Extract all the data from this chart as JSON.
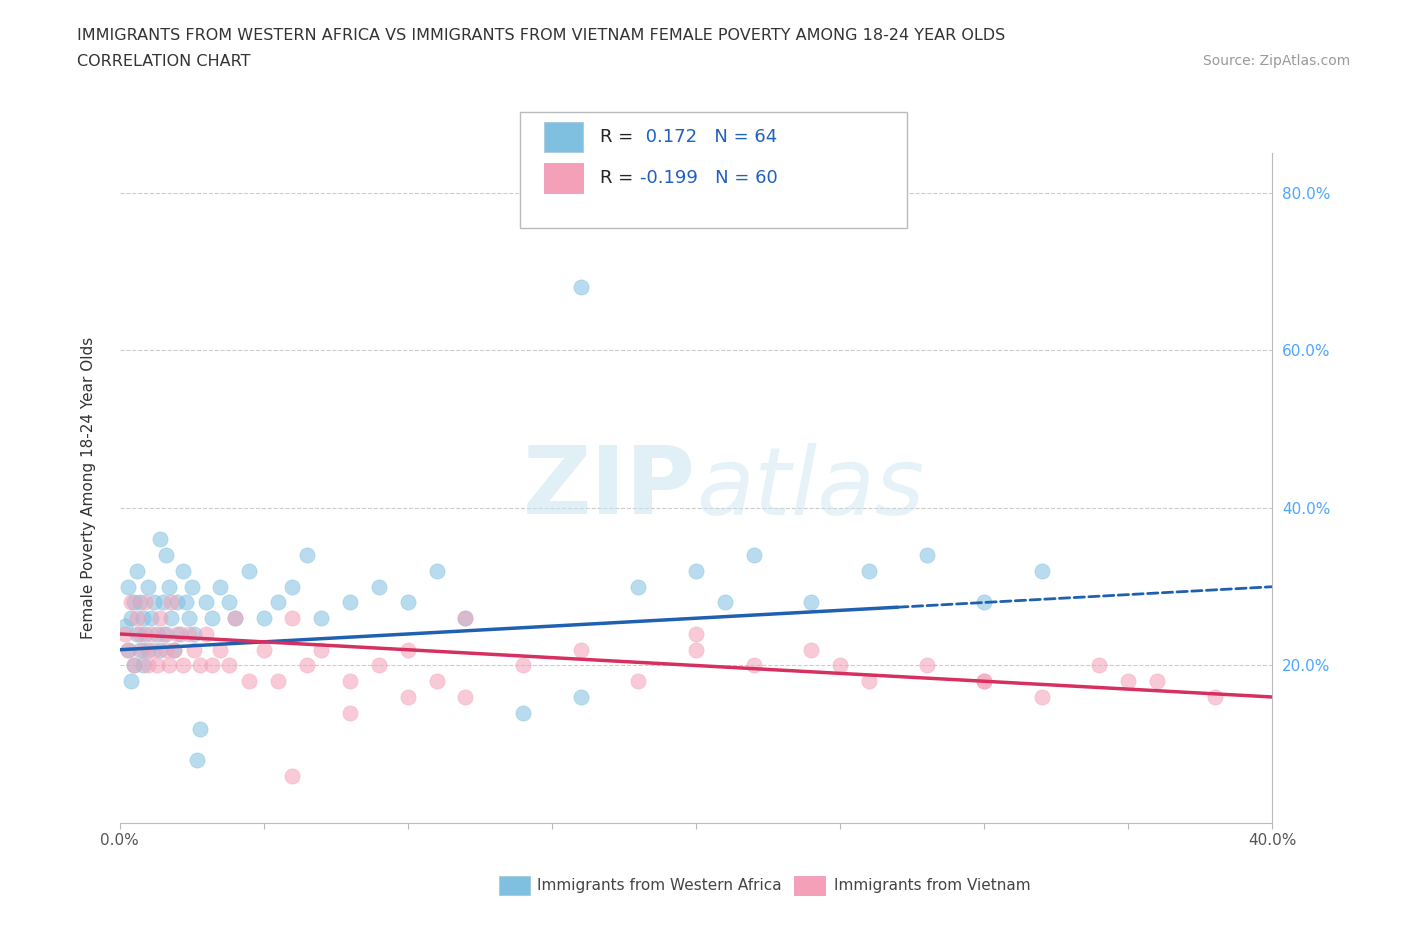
{
  "title_line1": "IMMIGRANTS FROM WESTERN AFRICA VS IMMIGRANTS FROM VIETNAM FEMALE POVERTY AMONG 18-24 YEAR OLDS",
  "title_line2": "CORRELATION CHART",
  "source_text": "Source: ZipAtlas.com",
  "ylabel": "Female Poverty Among 18-24 Year Olds",
  "x_min": 0.0,
  "x_max": 0.4,
  "y_min": 0.0,
  "y_max": 0.85,
  "x_ticks": [
    0.0,
    0.05,
    0.1,
    0.15,
    0.2,
    0.25,
    0.3,
    0.35,
    0.4
  ],
  "x_tick_labels": [
    "0.0%",
    "",
    "",
    "",
    "",
    "",
    "",
    "",
    "40.0%"
  ],
  "y_ticks": [
    0.0,
    0.2,
    0.4,
    0.6,
    0.8
  ],
  "y_tick_labels_right": [
    "",
    "20.0%",
    "40.0%",
    "60.0%",
    "80.0%"
  ],
  "blue_R": 0.172,
  "blue_N": 64,
  "pink_R": -0.199,
  "pink_N": 60,
  "blue_color": "#7fbfdf",
  "pink_color": "#f4a0b8",
  "blue_line_color": "#2060b0",
  "pink_line_color": "#d63060",
  "watermark_zip": "ZIP",
  "watermark_atlas": "atlas",
  "blue_scatter_x": [
    0.002,
    0.003,
    0.003,
    0.004,
    0.004,
    0.005,
    0.005,
    0.006,
    0.006,
    0.007,
    0.007,
    0.008,
    0.008,
    0.009,
    0.01,
    0.01,
    0.011,
    0.012,
    0.013,
    0.014,
    0.014,
    0.015,
    0.016,
    0.016,
    0.017,
    0.018,
    0.019,
    0.02,
    0.021,
    0.022,
    0.023,
    0.024,
    0.025,
    0.026,
    0.027,
    0.028,
    0.03,
    0.032,
    0.035,
    0.038,
    0.04,
    0.045,
    0.05,
    0.055,
    0.06,
    0.065,
    0.07,
    0.08,
    0.09,
    0.1,
    0.11,
    0.12,
    0.14,
    0.16,
    0.18,
    0.2,
    0.21,
    0.22,
    0.24,
    0.26,
    0.28,
    0.3,
    0.32,
    0.16
  ],
  "blue_scatter_y": [
    0.25,
    0.22,
    0.3,
    0.18,
    0.26,
    0.28,
    0.2,
    0.24,
    0.32,
    0.22,
    0.28,
    0.26,
    0.2,
    0.24,
    0.3,
    0.22,
    0.26,
    0.28,
    0.24,
    0.22,
    0.36,
    0.28,
    0.24,
    0.34,
    0.3,
    0.26,
    0.22,
    0.28,
    0.24,
    0.32,
    0.28,
    0.26,
    0.3,
    0.24,
    0.08,
    0.12,
    0.28,
    0.26,
    0.3,
    0.28,
    0.26,
    0.32,
    0.26,
    0.28,
    0.3,
    0.34,
    0.26,
    0.28,
    0.3,
    0.28,
    0.32,
    0.26,
    0.14,
    0.16,
    0.3,
    0.32,
    0.28,
    0.34,
    0.28,
    0.32,
    0.34,
    0.28,
    0.32,
    0.68
  ],
  "pink_scatter_x": [
    0.002,
    0.003,
    0.004,
    0.005,
    0.006,
    0.007,
    0.008,
    0.009,
    0.01,
    0.011,
    0.012,
    0.013,
    0.014,
    0.015,
    0.016,
    0.017,
    0.018,
    0.019,
    0.02,
    0.022,
    0.024,
    0.026,
    0.028,
    0.03,
    0.032,
    0.035,
    0.038,
    0.04,
    0.045,
    0.05,
    0.055,
    0.06,
    0.065,
    0.07,
    0.08,
    0.09,
    0.1,
    0.11,
    0.12,
    0.14,
    0.16,
    0.18,
    0.2,
    0.22,
    0.24,
    0.26,
    0.28,
    0.3,
    0.32,
    0.34,
    0.36,
    0.38,
    0.06,
    0.08,
    0.1,
    0.2,
    0.25,
    0.3,
    0.35,
    0.12
  ],
  "pink_scatter_y": [
    0.24,
    0.22,
    0.28,
    0.2,
    0.26,
    0.24,
    0.22,
    0.28,
    0.2,
    0.24,
    0.22,
    0.2,
    0.26,
    0.24,
    0.22,
    0.2,
    0.28,
    0.22,
    0.24,
    0.2,
    0.24,
    0.22,
    0.2,
    0.24,
    0.2,
    0.22,
    0.2,
    0.26,
    0.18,
    0.22,
    0.18,
    0.26,
    0.2,
    0.22,
    0.18,
    0.2,
    0.22,
    0.18,
    0.16,
    0.2,
    0.22,
    0.18,
    0.24,
    0.2,
    0.22,
    0.18,
    0.2,
    0.18,
    0.16,
    0.2,
    0.18,
    0.16,
    0.06,
    0.14,
    0.16,
    0.22,
    0.2,
    0.18,
    0.18,
    0.26
  ],
  "blue_line_x0": 0.0,
  "blue_line_x_solid_end": 0.27,
  "blue_line_x1": 0.4,
  "blue_line_y0": 0.22,
  "blue_line_y1": 0.3,
  "pink_line_x0": 0.0,
  "pink_line_x1": 0.4,
  "pink_line_y0": 0.24,
  "pink_line_y1": 0.16
}
